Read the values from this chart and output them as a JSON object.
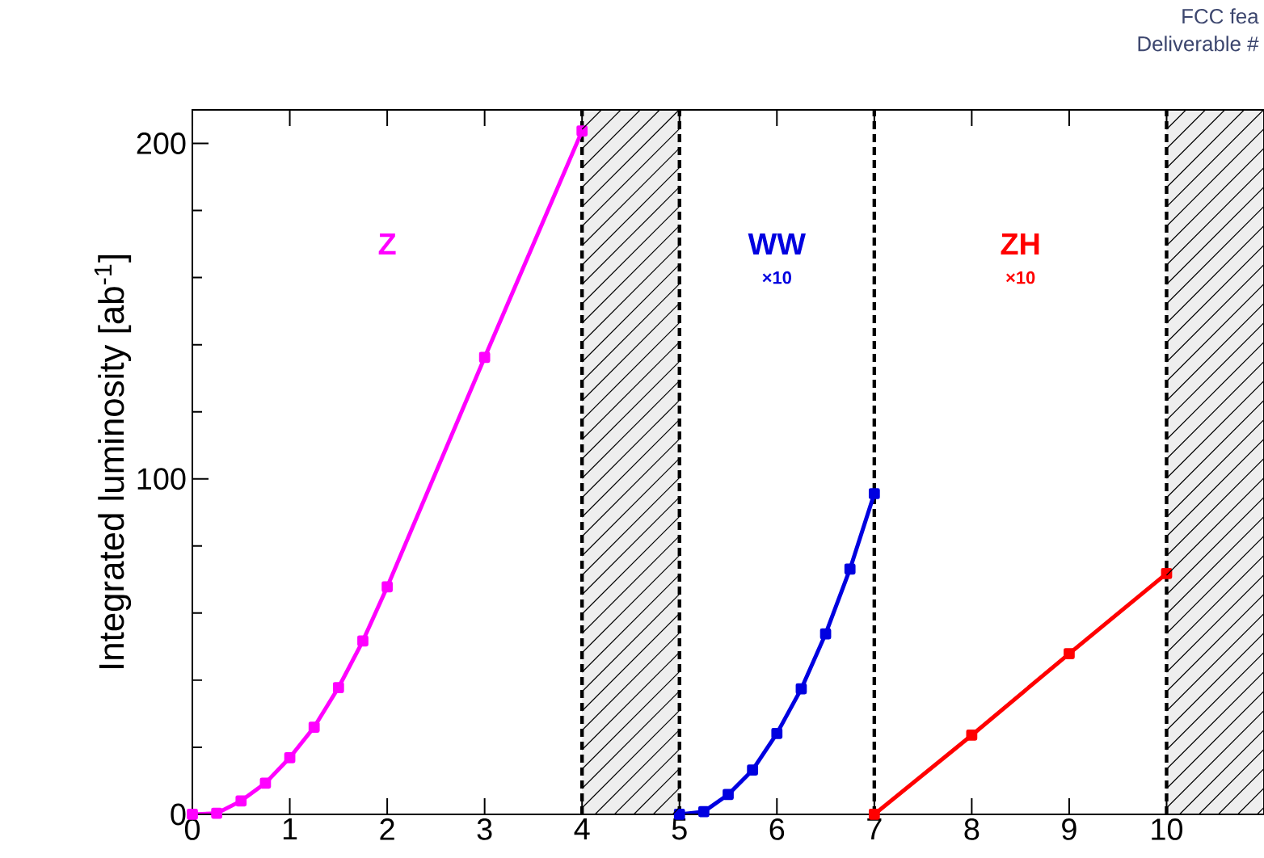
{
  "chart_data": {
    "type": "line",
    "ylabel": "Integrated luminosity [ab$^{-1}$]",
    "xlim": [
      0,
      11
    ],
    "ylim": [
      0,
      210
    ],
    "xticks": [
      0,
      1,
      2,
      3,
      4,
      5,
      6,
      7,
      8,
      9,
      10
    ],
    "yticks": [
      0,
      100,
      200
    ],
    "marker": "square",
    "line_style": "solid",
    "series": [
      {
        "name": "Z",
        "color": "#ff00ff",
        "x": [
          0,
          0.25,
          0.5,
          0.75,
          1,
          1.25,
          1.5,
          1.75,
          2,
          3,
          4
        ],
        "values": [
          0,
          0.3,
          4,
          9.3,
          16.9,
          26,
          37.8,
          51.7,
          67.8,
          136.2,
          203.7
        ]
      },
      {
        "name": "WW",
        "color": "#0000e0",
        "x": [
          5,
          5.25,
          5.5,
          5.75,
          6,
          6.25,
          6.5,
          6.75,
          7
        ],
        "values": [
          0,
          0.8,
          5.9,
          13.2,
          24.1,
          37.4,
          53.8,
          73.1,
          95.6
        ]
      },
      {
        "name": "ZH",
        "color": "#ff0000",
        "x": [
          7,
          8,
          9,
          10
        ],
        "values": [
          0,
          23.6,
          47.9,
          71.8
        ]
      }
    ],
    "ref_lines": [
      {
        "axis": "x",
        "value": 4,
        "line_style": "dashed",
        "color": "#000000"
      },
      {
        "axis": "x",
        "value": 5,
        "line_style": "dashed",
        "color": "#000000"
      },
      {
        "axis": "x",
        "value": 7,
        "line_style": "dashed",
        "color": "#000000"
      },
      {
        "axis": "x",
        "value": 10,
        "line_style": "dashed",
        "color": "#000000"
      }
    ],
    "bands": [
      {
        "axis": "x",
        "from": 4,
        "to": 5,
        "color": "#eeeeee"
      },
      {
        "axis": "x",
        "from": 10,
        "to": 11,
        "color": "#eeeeee"
      }
    ],
    "annotations": [
      "×10",
      "×10",
      "FCC fea",
      "Deliverable #"
    ]
  }
}
